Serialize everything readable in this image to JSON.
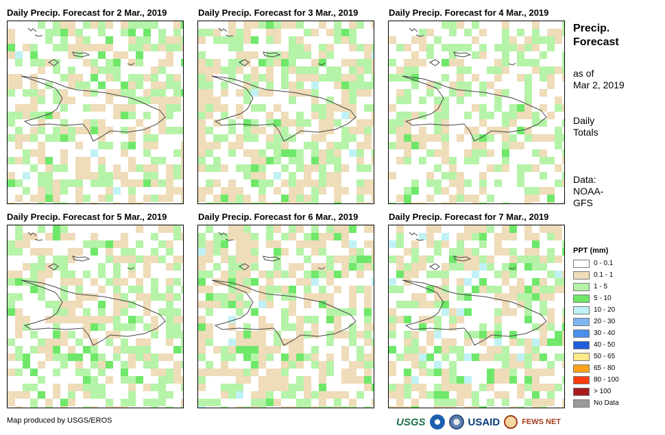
{
  "panels": [
    {
      "title": "Daily Precip. Forecast for 2 Mar., 2019"
    },
    {
      "title": "Daily Precip. Forecast for 3 Mar., 2019"
    },
    {
      "title": "Daily Precip. Forecast for 4 Mar., 2019"
    },
    {
      "title": "Daily Precip. Forecast for 5 Mar., 2019"
    },
    {
      "title": "Daily Precip. Forecast for 6 Mar., 2019"
    },
    {
      "title": "Daily Precip. Forecast for 7 Mar., 2019"
    }
  ],
  "side": {
    "title_line1": "Precip.",
    "title_line2": "Forecast",
    "asof_line1": "as of",
    "asof_line2": "Mar 2, 2019",
    "totals_line1": "Daily",
    "totals_line2": "Totals",
    "data_line1": "Data:",
    "data_line2": "NOAA-",
    "data_line3": "GFS"
  },
  "legend": {
    "title": "PPT (mm)",
    "items": [
      {
        "label": "0 - 0.1",
        "color": "#ffffff"
      },
      {
        "label": "0.1 - 1",
        "color": "#efdcb9"
      },
      {
        "label": "1 - 5",
        "color": "#b5f3a8"
      },
      {
        "label": "5 - 10",
        "color": "#6fe86a"
      },
      {
        "label": "10 - 20",
        "color": "#c0f2f5"
      },
      {
        "label": "20 - 30",
        "color": "#7fb6f2"
      },
      {
        "label": "30 - 40",
        "color": "#4a8ef0"
      },
      {
        "label": "40 - 50",
        "color": "#1f5fd9"
      },
      {
        "label": "50 - 65",
        "color": "#ffe98a"
      },
      {
        "label": "65 - 80",
        "color": "#ffa21a"
      },
      {
        "label": "80 - 100",
        "color": "#ff3d0d"
      },
      {
        "label": "> 100",
        "color": "#a61c1c"
      },
      {
        "label": "No Data",
        "color": "#9a9a9a"
      }
    ]
  },
  "footer": {
    "credit": "Map produced by USGS/EROS"
  },
  "logos": {
    "usgs": "USGS",
    "usaid": "USAID",
    "fews": "FEWS NET"
  }
}
